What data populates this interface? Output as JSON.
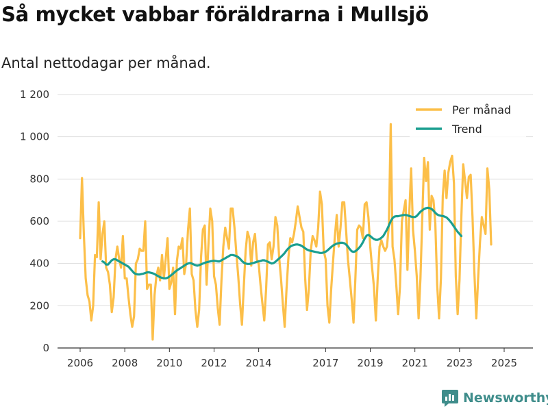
{
  "title": "Så mycket vabbar föräldrarna i Mullsjö",
  "subtitle": "Antal nettodagar per månad.",
  "brand": "Newsworthy",
  "colors": {
    "per_month": "#fcbf49",
    "trend": "#1a9e8f",
    "grid": "#dddddd",
    "axis": "#333333",
    "brand": "#3f8d8b"
  },
  "chart_data": {
    "type": "line",
    "title": "Så mycket vabbar föräldrarna i Mullsjö",
    "subtitle": "Antal nettodagar per månad.",
    "xlabel": "",
    "ylabel": "",
    "ylim": [
      0,
      1200
    ],
    "xlim": [
      2005.2,
      2026.0
    ],
    "yticks": [
      0,
      200,
      400,
      600,
      800,
      1000,
      1200
    ],
    "ytick_labels": [
      "0",
      "200",
      "400",
      "600",
      "800",
      "1 000",
      "1 200"
    ],
    "xticks": [
      2006,
      2008,
      2010,
      2012,
      2014,
      2017,
      2019,
      2021,
      2023,
      2025
    ],
    "xtick_labels": [
      "2006",
      "2008",
      "2010",
      "2012",
      "2014",
      "2017",
      "2019",
      "2021",
      "2023",
      "2025"
    ],
    "grid": true,
    "legend_position": "top-right",
    "series": [
      {
        "name": "Per månad",
        "start": 2006.0,
        "step": 0.08333,
        "values": [
          520,
          805,
          540,
          330,
          250,
          220,
          130,
          200,
          440,
          430,
          690,
          420,
          540,
          600,
          380,
          360,
          300,
          170,
          240,
          420,
          480,
          420,
          380,
          530,
          330,
          330,
          240,
          160,
          100,
          150,
          400,
          420,
          470,
          460,
          460,
          600,
          280,
          300,
          300,
          40,
          250,
          340,
          380,
          320,
          440,
          330,
          420,
          520,
          280,
          310,
          380,
          160,
          410,
          480,
          470,
          520,
          350,
          400,
          560,
          660,
          350,
          320,
          180,
          100,
          180,
          430,
          560,
          580,
          300,
          490,
          660,
          600,
          340,
          300,
          190,
          110,
          320,
          480,
          570,
          520,
          470,
          660,
          660,
          570,
          450,
          340,
          210,
          110,
          290,
          460,
          550,
          520,
          390,
          500,
          540,
          420,
          400,
          300,
          210,
          130,
          280,
          490,
          500,
          420,
          480,
          620,
          580,
          430,
          330,
          210,
          100,
          280,
          430,
          520,
          500,
          540,
          600,
          670,
          620,
          570,
          550,
          330,
          180,
          280,
          460,
          530,
          510,
          480,
          570,
          740,
          680,
          460,
          420,
          200,
          120,
          280,
          410,
          530,
          630,
          480,
          570,
          690,
          690,
          560,
          420,
          330,
          230,
          120,
          330,
          560,
          580,
          570,
          520,
          680,
          690,
          620,
          480,
          380,
          290,
          130,
          330,
          480,
          510,
          480,
          460,
          480,
          580,
          1060,
          480,
          420,
          300,
          160,
          290,
          600,
          650,
          700,
          370,
          640,
          850,
          560,
          460,
          340,
          140,
          330,
          620,
          900,
          790,
          880,
          560,
          720,
          700,
          590,
          300,
          140,
          330,
          720,
          840,
          710,
          830,
          880,
          910,
          780,
          340,
          160,
          320,
          620,
          870,
          790,
          710,
          810,
          820,
          620,
          360,
          140,
          330,
          500,
          620,
          580,
          540,
          850,
          750,
          490
        ]
      },
      {
        "name": "Trend",
        "start": 2007.0,
        "step": 0.08333,
        "values": [
          410,
          405,
          395,
          395,
          405,
          415,
          420,
          420,
          415,
          410,
          405,
          400,
          395,
          390,
          385,
          375,
          365,
          355,
          350,
          348,
          348,
          350,
          352,
          355,
          358,
          358,
          356,
          354,
          350,
          345,
          340,
          335,
          332,
          330,
          330,
          332,
          338,
          345,
          352,
          360,
          367,
          373,
          378,
          384,
          390,
          396,
          400,
          402,
          400,
          396,
          392,
          390,
          392,
          396,
          400,
          403,
          406,
          408,
          410,
          412,
          413,
          412,
          410,
          410,
          415,
          420,
          425,
          430,
          435,
          440,
          440,
          438,
          435,
          430,
          422,
          412,
          404,
          400,
          398,
          398,
          400,
          402,
          405,
          408,
          410,
          412,
          415,
          415,
          412,
          408,
          404,
          400,
          402,
          408,
          416,
          424,
          432,
          440,
          450,
          462,
          472,
          480,
          485,
          488,
          490,
          490,
          488,
          484,
          478,
          472,
          466,
          462,
          460,
          458,
          456,
          454,
          452,
          450,
          450,
          452,
          456,
          462,
          470,
          478,
          485,
          490,
          494,
          496,
          498,
          498,
          496,
          490,
          480,
          468,
          458,
          455,
          458,
          465,
          474,
          485,
          500,
          518,
          532,
          535,
          530,
          522,
          516,
          512,
          512,
          516,
          522,
          530,
          545,
          560,
          580,
          600,
          615,
          622,
          624,
          624,
          626,
          628,
          630,
          630,
          628,
          625,
          622,
          620,
          620,
          625,
          635,
          645,
          652,
          658,
          662,
          664,
          662,
          658,
          650,
          640,
          632,
          628,
          626,
          625,
          622,
          618,
          610,
          600,
          588,
          575,
          562,
          550,
          540,
          530
        ]
      }
    ]
  }
}
